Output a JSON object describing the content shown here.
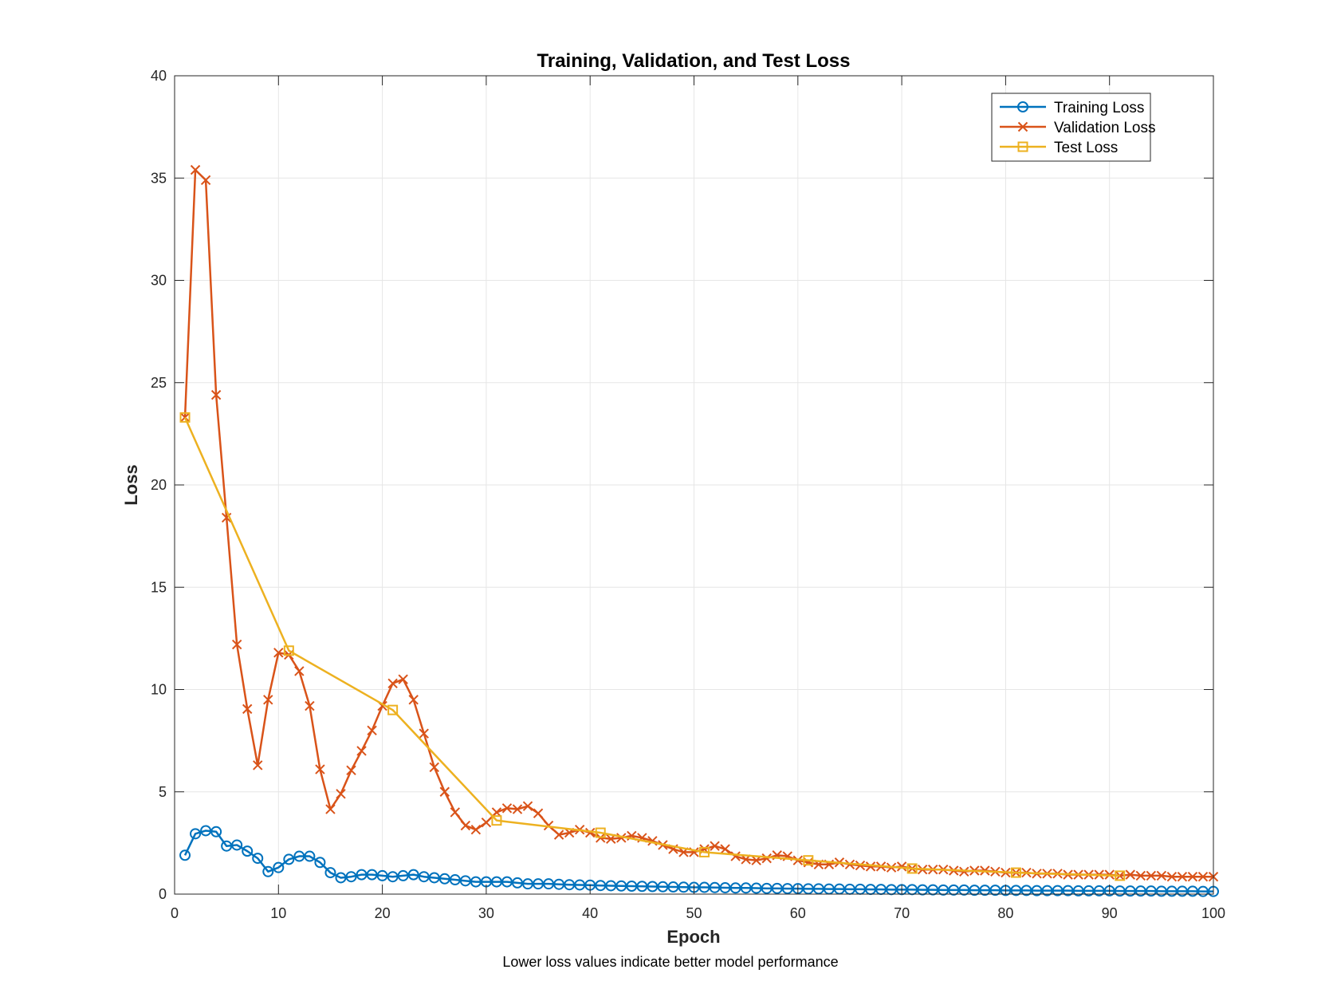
{
  "chart_data": {
    "type": "line",
    "title": "Training, Validation, and Test Loss",
    "xlabel": "Epoch",
    "ylabel": "Loss",
    "note": "Lower loss values indicate better model performance",
    "xlim": [
      0,
      100
    ],
    "ylim": [
      0,
      40
    ],
    "xticks": [
      0,
      10,
      20,
      30,
      40,
      50,
      60,
      70,
      80,
      90,
      100
    ],
    "yticks": [
      0,
      5,
      10,
      15,
      20,
      25,
      30,
      35,
      40
    ],
    "grid": true,
    "legend_position": "top-right",
    "series": [
      {
        "name": "Training Loss",
        "color": "#0072BD",
        "marker": "circle",
        "x": [
          1,
          2,
          3,
          4,
          5,
          6,
          7,
          8,
          9,
          10,
          11,
          12,
          13,
          14,
          15,
          16,
          17,
          18,
          19,
          20,
          21,
          22,
          23,
          24,
          25,
          26,
          27,
          28,
          29,
          30,
          31,
          32,
          33,
          34,
          35,
          36,
          37,
          38,
          39,
          40,
          41,
          42,
          43,
          44,
          45,
          46,
          47,
          48,
          49,
          50,
          51,
          52,
          53,
          54,
          55,
          56,
          57,
          58,
          59,
          60,
          61,
          62,
          63,
          64,
          65,
          66,
          67,
          68,
          69,
          70,
          71,
          72,
          73,
          74,
          75,
          76,
          77,
          78,
          79,
          80,
          81,
          82,
          83,
          84,
          85,
          86,
          87,
          88,
          89,
          90,
          91,
          92,
          93,
          94,
          95,
          96,
          97,
          98,
          99,
          100
        ],
        "y": [
          1.9,
          2.95,
          3.1,
          3.05,
          2.35,
          2.4,
          2.1,
          1.75,
          1.1,
          1.3,
          1.7,
          1.85,
          1.85,
          1.55,
          1.05,
          0.8,
          0.85,
          0.95,
          0.95,
          0.9,
          0.85,
          0.9,
          0.95,
          0.85,
          0.8,
          0.75,
          0.7,
          0.65,
          0.6,
          0.6,
          0.6,
          0.6,
          0.55,
          0.5,
          0.5,
          0.5,
          0.48,
          0.46,
          0.45,
          0.44,
          0.42,
          0.41,
          0.4,
          0.39,
          0.38,
          0.37,
          0.36,
          0.35,
          0.34,
          0.33,
          0.33,
          0.32,
          0.31,
          0.3,
          0.3,
          0.29,
          0.28,
          0.28,
          0.27,
          0.27,
          0.26,
          0.26,
          0.25,
          0.25,
          0.24,
          0.24,
          0.23,
          0.23,
          0.22,
          0.22,
          0.22,
          0.21,
          0.21,
          0.2,
          0.2,
          0.2,
          0.19,
          0.19,
          0.19,
          0.18,
          0.18,
          0.18,
          0.17,
          0.17,
          0.17,
          0.17,
          0.16,
          0.16,
          0.16,
          0.16,
          0.15,
          0.15,
          0.15,
          0.15,
          0.14,
          0.14,
          0.14,
          0.14,
          0.13,
          0.13
        ]
      },
      {
        "name": "Validation Loss",
        "color": "#D95319",
        "marker": "x",
        "x": [
          1,
          2,
          3,
          4,
          5,
          6,
          7,
          8,
          9,
          10,
          11,
          12,
          13,
          14,
          15,
          16,
          17,
          18,
          19,
          20,
          21,
          22,
          23,
          24,
          25,
          26,
          27,
          28,
          29,
          30,
          31,
          32,
          33,
          34,
          35,
          36,
          37,
          38,
          39,
          40,
          41,
          42,
          43,
          44,
          45,
          46,
          47,
          48,
          49,
          50,
          51,
          52,
          53,
          54,
          55,
          56,
          57,
          58,
          59,
          60,
          61,
          62,
          63,
          64,
          65,
          66,
          67,
          68,
          69,
          70,
          71,
          72,
          73,
          74,
          75,
          76,
          77,
          78,
          79,
          80,
          81,
          82,
          83,
          84,
          85,
          86,
          87,
          88,
          89,
          90,
          91,
          92,
          93,
          94,
          95,
          96,
          97,
          98,
          99,
          100
        ],
        "y": [
          23.3,
          35.4,
          34.9,
          24.4,
          18.4,
          12.2,
          9.05,
          6.3,
          9.5,
          11.8,
          11.7,
          10.9,
          9.2,
          6.1,
          4.15,
          4.9,
          6.05,
          7.0,
          8.0,
          9.2,
          10.3,
          10.5,
          9.5,
          7.85,
          6.2,
          5.0,
          4.0,
          3.35,
          3.15,
          3.5,
          4.0,
          4.2,
          4.15,
          4.3,
          3.95,
          3.35,
          2.9,
          3.0,
          3.15,
          3.0,
          2.75,
          2.7,
          2.75,
          2.85,
          2.75,
          2.6,
          2.4,
          2.2,
          2.05,
          2.05,
          2.2,
          2.35,
          2.2,
          1.85,
          1.7,
          1.65,
          1.75,
          1.9,
          1.85,
          1.65,
          1.55,
          1.45,
          1.45,
          1.55,
          1.45,
          1.4,
          1.35,
          1.35,
          1.3,
          1.35,
          1.25,
          1.2,
          1.2,
          1.2,
          1.15,
          1.1,
          1.15,
          1.15,
          1.1,
          1.05,
          1.05,
          1.05,
          1.0,
          1.0,
          1.0,
          0.95,
          0.95,
          0.95,
          0.95,
          0.95,
          0.9,
          0.95,
          0.9,
          0.9,
          0.9,
          0.85,
          0.85,
          0.85,
          0.85,
          0.85
        ]
      },
      {
        "name": "Test Loss",
        "color": "#EDB120",
        "marker": "square",
        "x": [
          1,
          11,
          21,
          31,
          41,
          51,
          61,
          71,
          81,
          91
        ],
        "y": [
          23.3,
          11.9,
          9.0,
          3.6,
          3.0,
          2.05,
          1.65,
          1.25,
          1.05,
          0.9
        ]
      }
    ]
  }
}
